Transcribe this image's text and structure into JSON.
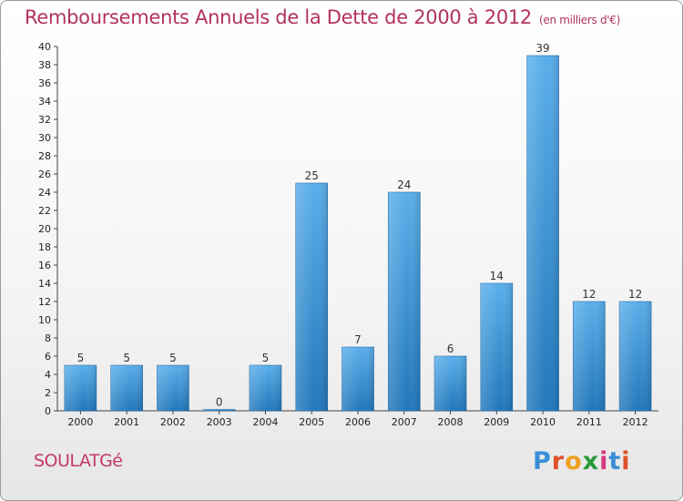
{
  "title": "Remboursements Annuels de la Dette de 2000 à 2012",
  "unit": "(en milliers d'€)",
  "commune": "SOULATGé",
  "logo": {
    "text": "Proxiti",
    "colors": [
      "#3a8ed8",
      "#e0522a",
      "#f0a020",
      "#2a9a3a",
      "#d63a80",
      "#3a8ed8",
      "#e0522a"
    ]
  },
  "colors": {
    "title": "#b2325a",
    "bar_top": "#5aaeea",
    "bar_bottom": "#2277bb"
  },
  "chart_data": {
    "type": "bar",
    "categories": [
      "2000",
      "2001",
      "2002",
      "2003",
      "2004",
      "2005",
      "2006",
      "2007",
      "2008",
      "2009",
      "2010",
      "2011",
      "2012"
    ],
    "values": [
      5,
      5,
      5,
      0,
      5,
      25,
      7,
      24,
      6,
      14,
      39,
      12,
      12
    ],
    "title": "Remboursements Annuels de la Dette de 2000 à 2012",
    "ylim": [
      0,
      40
    ],
    "yticks": [
      0,
      2,
      4,
      6,
      8,
      10,
      12,
      14,
      16,
      18,
      20,
      22,
      24,
      26,
      28,
      30,
      32,
      34,
      36,
      38,
      40
    ],
    "grid": false
  }
}
